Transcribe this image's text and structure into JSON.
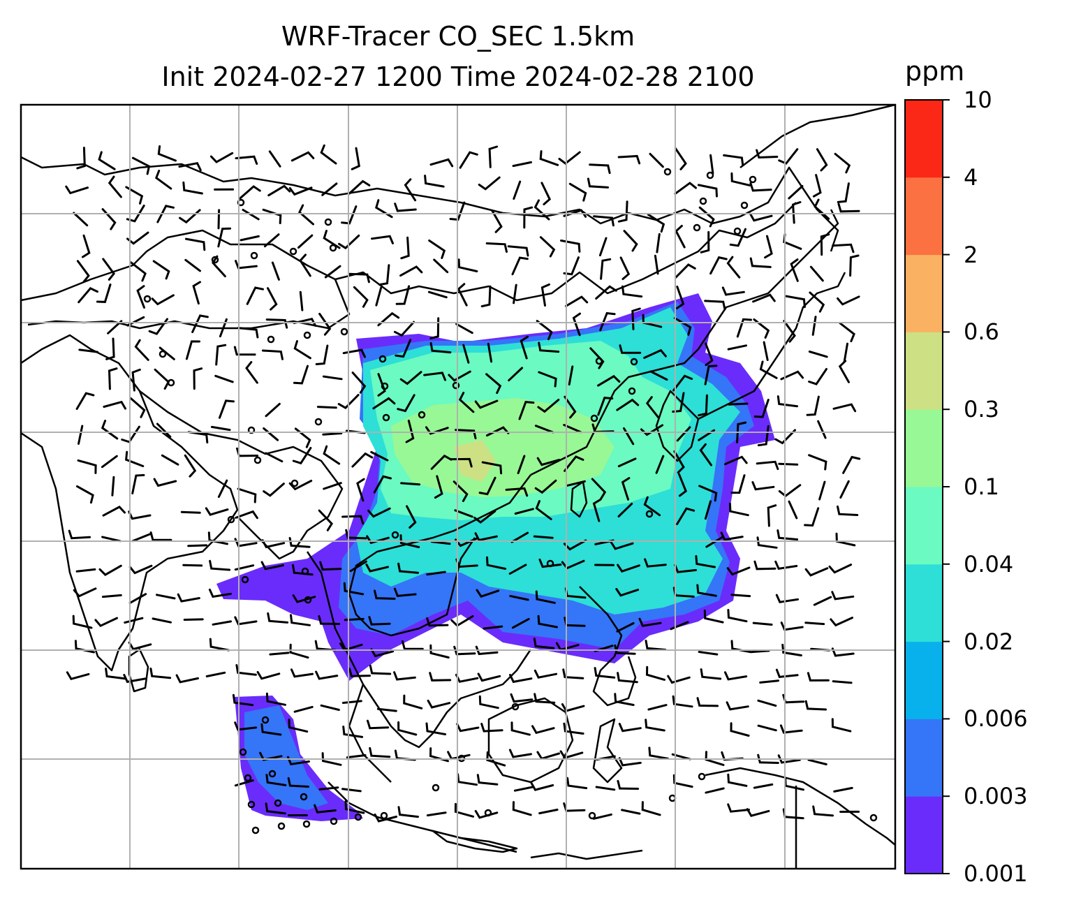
{
  "title": {
    "line1": "WRF-Tracer CO_SEC 1.5km",
    "line2": "Init 2024-02-27 1200 Time 2024-02-28 2100"
  },
  "colorbar": {
    "unit": "ppm",
    "levels": [
      "0.001",
      "0.003",
      "0.006",
      "0.02",
      "0.04",
      "0.1",
      "0.3",
      "0.6",
      "2",
      "4",
      "10"
    ],
    "colors": [
      "#6a2cfb",
      "#3575f7",
      "#08b1ec",
      "#2ddfd6",
      "#6afac2",
      "#98f895",
      "#cde084",
      "#fbb162",
      "#fb7142",
      "#fb2818"
    ]
  },
  "map": {
    "gridlines": "on",
    "basemap": "coastlines-and-borders",
    "overlay": "wind-barbs",
    "plume_levels": {
      "outer": 0.001,
      "blue": 0.003,
      "cyan": 0.02,
      "teal": 0.04,
      "green": 0.1,
      "lightgreen": 0.3
    }
  }
}
